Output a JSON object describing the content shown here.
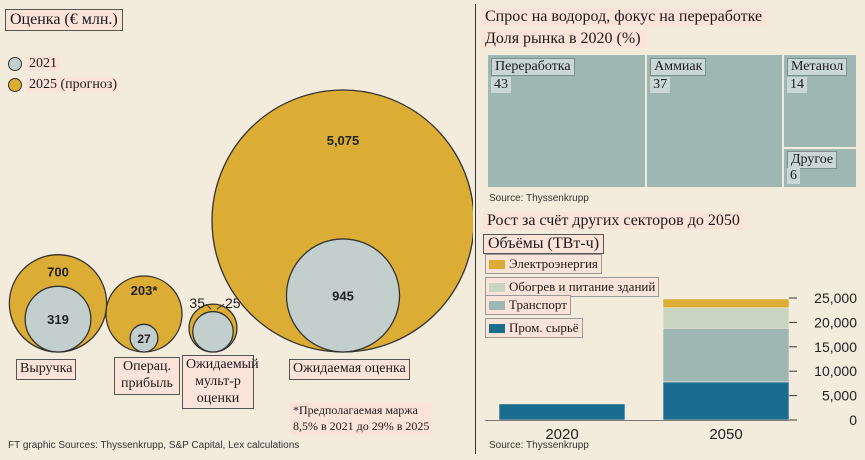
{
  "left": {
    "title": "Оценка (€ млн.)",
    "legend": [
      {
        "label": "2021",
        "color": "#c3cfcd"
      },
      {
        "label": "2025 (прогноз)",
        "color": "#dcad34"
      }
    ],
    "footnote": "*Предполагаемая маржа\n8,5% в 2021 до 29% в 2025",
    "source": "FT graphic  Sources: Thyssenkrupp, S&P Capital, Lex calculations"
  },
  "right": {
    "tree_title_1": "Спрос на водород, фокус на переработке",
    "tree_title_2": "Доля рынка в 2020 (%)",
    "tree_source": "Source: Thyssenkrupp",
    "bar_title_1": "Рост за счёт других секторов до 2050",
    "bar_title_2": "Объёмы (ТВт-ч)",
    "bar_source": "Source: Thyssenkrupp"
  },
  "colors": {
    "gold": "#dcad34",
    "grey": "#c3cfcd",
    "tree": "#9fb7b3",
    "bar_elec": "#dcad34",
    "bar_heat": "#c7d5c2",
    "bar_trans": "#9fb7b3",
    "bar_ind": "#1a6d8f"
  },
  "chart_data": [
    {
      "type": "bubble",
      "title": "Оценка (€ млн.)",
      "unit": "€ млн.",
      "series_names": [
        "2021",
        "2025 (прогноз)"
      ],
      "categories": [
        {
          "name": "Выручка",
          "v2021": 319,
          "v2025": 700,
          "label2021": "319",
          "label2025": "700"
        },
        {
          "name": "Операц. прибыль",
          "v2021": 27,
          "v2025": 203,
          "label2021": "27",
          "label2025": "203*"
        },
        {
          "name": "Ожидаемый мульт-р оценки",
          "v2021": 25,
          "v2025": 35,
          "label2021": "25",
          "label2025": "35"
        },
        {
          "name": "Ожидаемая оценка",
          "v2021": 945,
          "v2025": 5075,
          "label2021": "945",
          "label2025": "5,075"
        }
      ]
    },
    {
      "type": "treemap",
      "title": "Спрос на водород, фокус на переработке",
      "subtitle": "Доля рынка в 2020 (%)",
      "items": [
        {
          "name": "Переработка",
          "value": 43
        },
        {
          "name": "Аммиак",
          "value": 37
        },
        {
          "name": "Метанол",
          "value": 14
        },
        {
          "name": "Другое",
          "value": 6
        }
      ]
    },
    {
      "type": "bar",
      "stacked": true,
      "title": "Рост за счёт других секторов до 2050",
      "ylabel": "Объёмы (ТВт-ч)",
      "categories": [
        "2020",
        "2050"
      ],
      "ylim": [
        0,
        25000
      ],
      "yticks": [
        "0",
        "5,000",
        "10,000",
        "15,000",
        "20,000",
        "25,000"
      ],
      "series": [
        {
          "name": "Пром. сырьё",
          "values": [
            3300,
            7800
          ]
        },
        {
          "name": "Транспорт",
          "values": [
            0,
            11000
          ]
        },
        {
          "name": "Обогрев и питание зданий",
          "values": [
            0,
            4200
          ]
        },
        {
          "name": "Электроэнергия",
          "values": [
            0,
            1800
          ]
        }
      ]
    }
  ]
}
